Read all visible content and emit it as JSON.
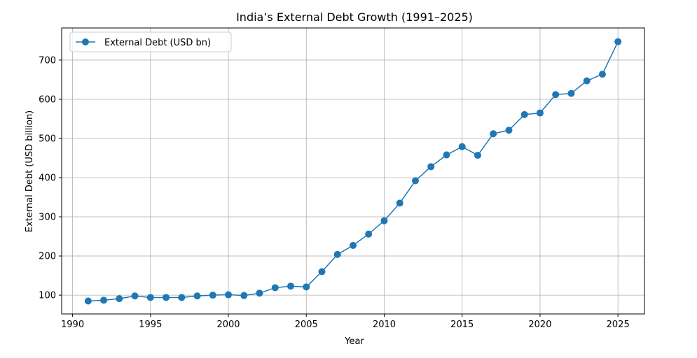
{
  "chart_data": {
    "type": "line",
    "title": "India’s External Debt Growth (1991–2025)",
    "xlabel": "Year",
    "ylabel": "External Debt (USD billion)",
    "xlim": [
      1989.3,
      2026.7
    ],
    "ylim": [
      52,
      782
    ],
    "xticks": [
      1990,
      1995,
      2000,
      2005,
      2010,
      2015,
      2020,
      2025
    ],
    "yticks": [
      100,
      200,
      300,
      400,
      500,
      600,
      700
    ],
    "grid": true,
    "legend_position": "top-left",
    "color": "#1f77b4",
    "series": [
      {
        "name": "External Debt (USD bn)",
        "x": [
          1991,
          1992,
          1993,
          1994,
          1995,
          1996,
          1997,
          1998,
          1999,
          2000,
          2001,
          2002,
          2003,
          2004,
          2005,
          2006,
          2007,
          2008,
          2009,
          2010,
          2011,
          2012,
          2013,
          2014,
          2015,
          2016,
          2017,
          2018,
          2019,
          2020,
          2021,
          2022,
          2023,
          2024,
          2025
        ],
        "values": [
          85,
          87,
          91,
          98,
          94,
          94,
          94,
          98,
          100,
          101,
          99,
          105,
          119,
          123,
          121,
          160,
          204,
          227,
          256,
          290,
          335,
          392,
          428,
          458,
          479,
          457,
          512,
          521,
          561,
          565,
          612,
          615,
          647,
          664,
          747
        ]
      }
    ]
  }
}
